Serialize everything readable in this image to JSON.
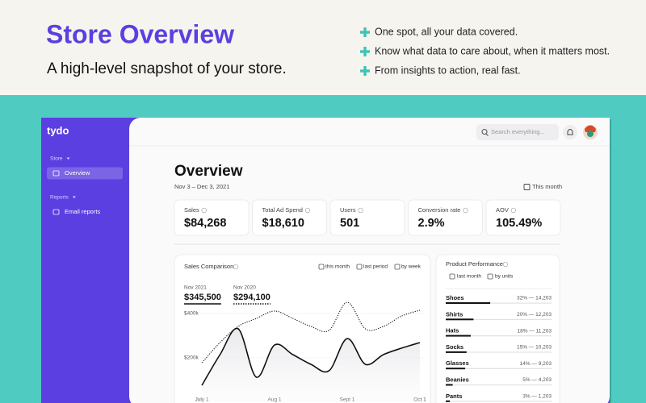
{
  "header": {
    "title": "Store Overview",
    "subtitle": "A high-level snapshot of your store.",
    "features": [
      "One spot, all your data covered.",
      "Know what data to care about, when it matters most.",
      "From insights to action, real fast."
    ]
  },
  "sidebar": {
    "logo": "tydo",
    "sections": [
      {
        "label": "Store",
        "items": [
          "Overview"
        ]
      },
      {
        "label": "Reports",
        "items": [
          "Email reports"
        ]
      }
    ]
  },
  "topbar": {
    "search_placeholder": "Search everything..."
  },
  "page": {
    "title": "Overview",
    "date_range": "Nov 3 – Dec 3, 2021",
    "period": "This month"
  },
  "kpis": [
    {
      "label": "Sales",
      "value": "$84,268"
    },
    {
      "label": "Total Ad Spend",
      "value": "$18,610"
    },
    {
      "label": "Users",
      "value": "501"
    },
    {
      "label": "Conversion rate",
      "value": "2.9%"
    },
    {
      "label": "AOV",
      "value": "105.49%"
    }
  ],
  "sales_chart": {
    "type": "line",
    "title": "Sales Comparison",
    "controls": [
      "this month",
      "last period",
      "by week"
    ],
    "categories": [
      "July 1",
      null,
      null,
      null,
      "Aug 1",
      null,
      null,
      null,
      "Sept 1",
      null,
      null,
      null,
      "Oct 1"
    ],
    "series": [
      {
        "name": "Nov 2021",
        "total": "$345,500",
        "color": "#111111",
        "line_style": "solid",
        "values": [
          76000,
          215000,
          331000,
          113000,
          258000,
          215000,
          171000,
          142000,
          287000,
          171000,
          215000,
          244000,
          269000
        ]
      },
      {
        "name": "Nov 2020",
        "total": "$294,100",
        "color": "#111111",
        "line_style": "dotted",
        "values": [
          178000,
          269000,
          342000,
          378000,
          411000,
          378000,
          342000,
          324000,
          451000,
          331000,
          342000,
          389000,
          415000
        ]
      }
    ],
    "ylim": [
      0,
      460000
    ],
    "yticks": [
      {
        "value": 200000,
        "label": "$200k"
      },
      {
        "value": 400000,
        "label": "$400k"
      }
    ]
  },
  "product_performance": {
    "title": "Product Performance",
    "controls": [
      "last month",
      "by units"
    ],
    "rows": [
      {
        "name": "Shoes",
        "value": 32,
        "label": "32% — 14,203"
      },
      {
        "name": "Shirts",
        "value": 20,
        "label": "20% — 12,203"
      },
      {
        "name": "Hats",
        "value": 18,
        "label": "18% — 11,203"
      },
      {
        "name": "Socks",
        "value": 15,
        "label": "15% — 10,203"
      },
      {
        "name": "Glasses",
        "value": 14,
        "label": "14% — 9,203"
      },
      {
        "name": "Beanies",
        "value": 5,
        "label": "5% — 4,203"
      },
      {
        "name": "Pants",
        "value": 3,
        "label": "3% — 1,203"
      }
    ]
  }
}
